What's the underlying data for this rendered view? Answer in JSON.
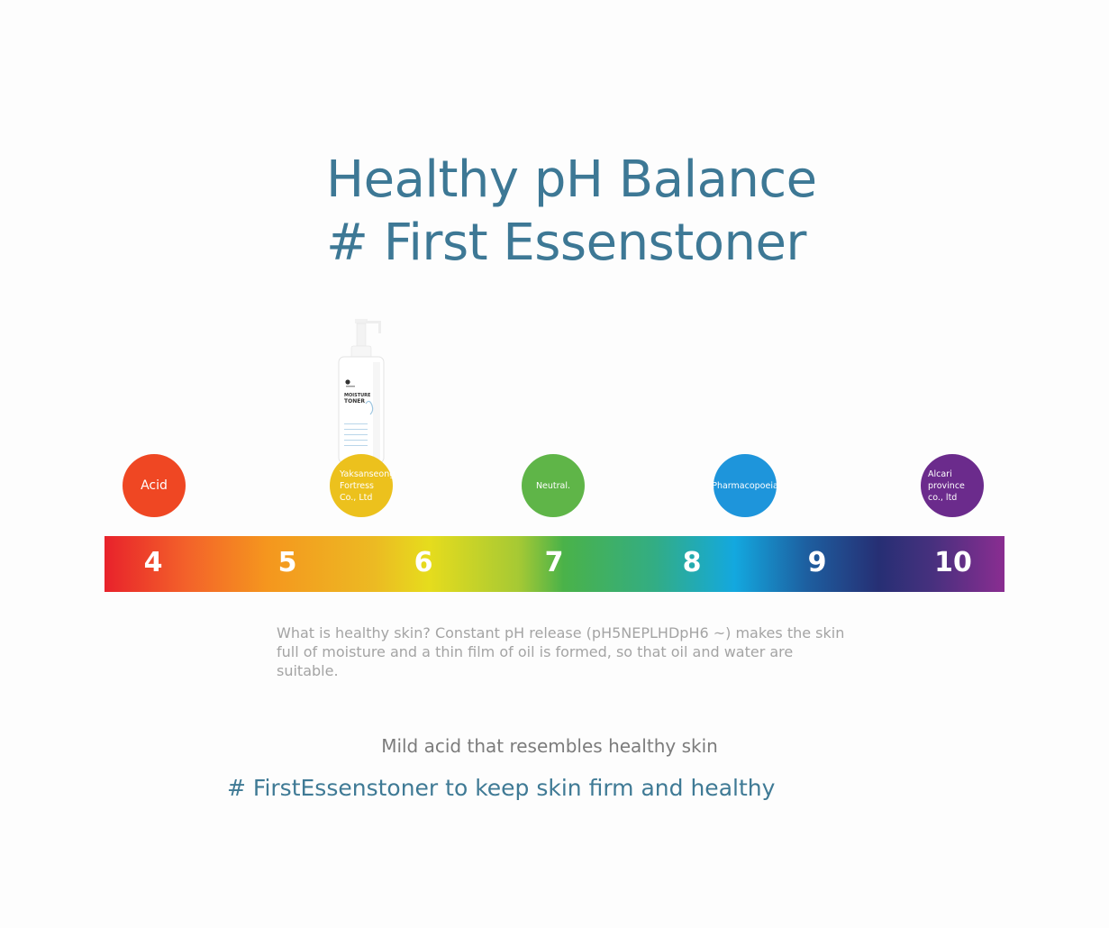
{
  "title": {
    "line1": "Healthy pH Balance",
    "line2": "# First Essenstoner"
  },
  "product": {
    "label_line1": "MOISTURE",
    "label_line2": "TONER"
  },
  "markers": [
    {
      "label": "Acid"
    },
    {
      "label": "Yaksanseong Fortress Co., Ltd"
    },
    {
      "label": "Neutral."
    },
    {
      "label": "Pharmacopoeia"
    },
    {
      "label": "Alcari province co., ltd"
    }
  ],
  "scale": {
    "ticks": [
      "4",
      "5",
      "6",
      "7",
      "8",
      "9",
      "10"
    ]
  },
  "description": "What is healthy skin? Constant pH release (pH5NEPLHDpH6 ~) makes the skin full of moisture and a thin film of oil is formed, so that oil and water are suitable.",
  "tagline": {
    "line1": "Mild acid that resembles healthy skin",
    "line2": "# FirstEssenstoner to keep skin firm and healthy"
  }
}
